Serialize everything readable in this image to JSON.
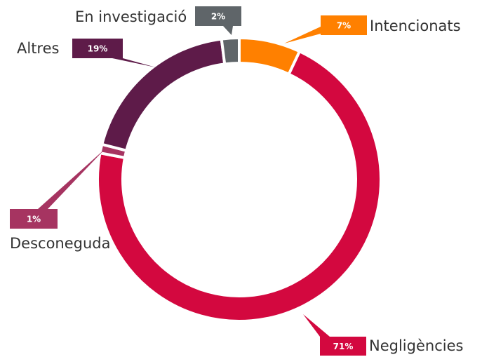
{
  "chart_data": {
    "type": "donut",
    "categories": [
      "Intencionats",
      "Negligències",
      "Desconeguda",
      "Altres",
      "En investigació"
    ],
    "values": [
      7,
      71,
      1,
      19,
      2
    ],
    "value_labels": [
      "7%",
      "71%",
      "1%",
      "19%",
      "2%"
    ],
    "colors": [
      "#ff8000",
      "#d3083f",
      "#a63461",
      "#5e1b49",
      "#5f6569"
    ]
  }
}
